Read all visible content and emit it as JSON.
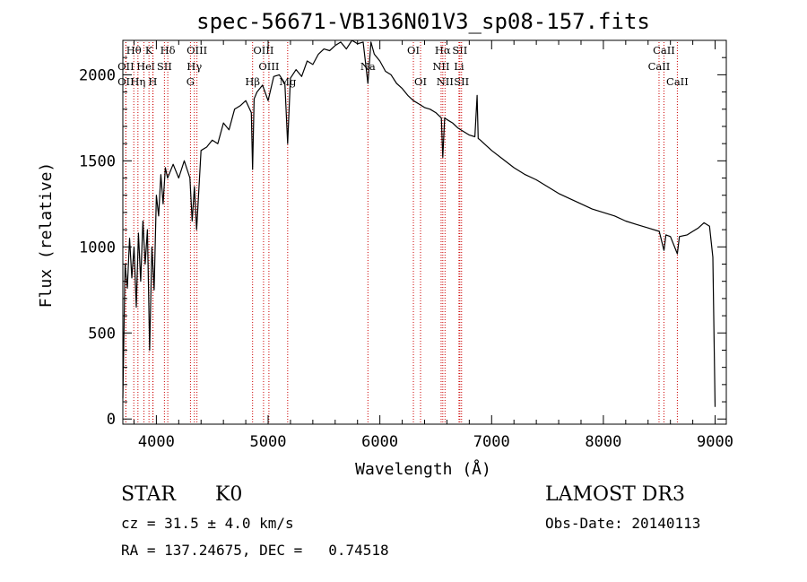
{
  "chart_data": {
    "type": "line",
    "title": "spec-56671-VB136N01V3_sp08-157.fits",
    "xlabel": "Wavelength (Å)",
    "ylabel": "Flux (relative)",
    "xlim": [
      3700,
      9100
    ],
    "ylim": [
      -30,
      2200
    ],
    "x_ticks": [
      4000,
      5000,
      6000,
      7000,
      8000,
      9000
    ],
    "y_ticks": [
      0,
      500,
      1000,
      1500,
      2000
    ],
    "x_tick_labels": [
      "4000",
      "5000",
      "6000",
      "7000",
      "8000",
      "9000"
    ],
    "y_tick_labels": [
      "0",
      "500",
      "1000",
      "1500",
      "2000"
    ],
    "series": [
      {
        "name": "spectrum",
        "x": [
          3700,
          3720,
          3740,
          3760,
          3780,
          3800,
          3820,
          3840,
          3860,
          3880,
          3900,
          3920,
          3940,
          3960,
          3980,
          4000,
          4020,
          4040,
          4060,
          4080,
          4100,
          4150,
          4200,
          4250,
          4300,
          4320,
          4340,
          4360,
          4400,
          4450,
          4500,
          4550,
          4600,
          4650,
          4700,
          4750,
          4800,
          4850,
          4861,
          4875,
          4900,
          4950,
          5000,
          5050,
          5100,
          5150,
          5175,
          5200,
          5250,
          5300,
          5350,
          5400,
          5450,
          5500,
          5550,
          5600,
          5650,
          5700,
          5750,
          5800,
          5850,
          5893,
          5920,
          5950,
          6000,
          6050,
          6100,
          6150,
          6200,
          6250,
          6300,
          6350,
          6400,
          6450,
          6500,
          6550,
          6563,
          6580,
          6600,
          6650,
          6700,
          6750,
          6800,
          6850,
          6870,
          6880,
          6900,
          6950,
          7000,
          7100,
          7200,
          7300,
          7400,
          7500,
          7600,
          7700,
          7800,
          7900,
          8000,
          8100,
          8200,
          8300,
          8400,
          8500,
          8542,
          8560,
          8600,
          8662,
          8680,
          8750,
          8800,
          8850,
          8900,
          8950,
          8980,
          9000
        ],
        "y": [
          120,
          900,
          760,
          1050,
          820,
          1000,
          650,
          1080,
          800,
          1150,
          900,
          1100,
          400,
          1000,
          750,
          1300,
          1180,
          1420,
          1250,
          1460,
          1400,
          1480,
          1400,
          1500,
          1400,
          1150,
          1350,
          1100,
          1560,
          1580,
          1620,
          1600,
          1720,
          1680,
          1800,
          1820,
          1850,
          1780,
          1450,
          1860,
          1900,
          1940,
          1850,
          1990,
          2000,
          1950,
          1600,
          1980,
          2030,
          1990,
          2080,
          2060,
          2120,
          2150,
          2140,
          2170,
          2190,
          2150,
          2200,
          2180,
          2190,
          1950,
          2190,
          2120,
          2080,
          2020,
          2000,
          1950,
          1920,
          1880,
          1850,
          1830,
          1810,
          1800,
          1780,
          1750,
          1520,
          1750,
          1740,
          1720,
          1690,
          1670,
          1650,
          1640,
          1880,
          1630,
          1620,
          1590,
          1560,
          1510,
          1460,
          1420,
          1390,
          1350,
          1310,
          1280,
          1250,
          1220,
          1200,
          1180,
          1150,
          1130,
          1110,
          1090,
          980,
          1070,
          1060,
          960,
          1060,
          1070,
          1090,
          1110,
          1140,
          1120,
          940,
          70
        ]
      }
    ],
    "line_ids": [
      {
        "label": "Hθ",
        "wavelength": 3798,
        "row": 0
      },
      {
        "label": "K",
        "wavelength": 3934,
        "row": 0
      },
      {
        "label": "Hδ",
        "wavelength": 4102,
        "row": 0
      },
      {
        "label": "OIII",
        "wavelength": 4363,
        "row": 0
      },
      {
        "label": "OIII",
        "wavelength": 4959,
        "row": 0
      },
      {
        "label": "OI",
        "wavelength": 6300,
        "row": 0
      },
      {
        "label": "Hα",
        "wavelength": 6563,
        "row": 0
      },
      {
        "label": "SII",
        "wavelength": 6716,
        "row": 0
      },
      {
        "label": "CaII",
        "wavelength": 8542,
        "row": 0
      },
      {
        "label": "OII",
        "wavelength": 3727,
        "row": 1
      },
      {
        "label": "He",
        "wavelength": 3889,
        "row": 1
      },
      {
        "label": "I",
        "wavelength": 3970,
        "row": 1
      },
      {
        "label": "SII",
        "wavelength": 4072,
        "row": 1
      },
      {
        "label": "Hγ",
        "wavelength": 4340,
        "row": 1
      },
      {
        "label": "OIII",
        "wavelength": 5007,
        "row": 1
      },
      {
        "label": "Na",
        "wavelength": 5893,
        "row": 1
      },
      {
        "label": "NII",
        "wavelength": 6548,
        "row": 1
      },
      {
        "label": "Li",
        "wavelength": 6708,
        "row": 1
      },
      {
        "label": "CaII",
        "wavelength": 8498,
        "row": 1
      },
      {
        "label": "OII",
        "wavelength": 3727,
        "row": 2
      },
      {
        "label": "Hη",
        "wavelength": 3835,
        "row": 2
      },
      {
        "label": "H",
        "wavelength": 3968,
        "row": 2
      },
      {
        "label": "G",
        "wavelength": 4305,
        "row": 2
      },
      {
        "label": "Hβ",
        "wavelength": 4861,
        "row": 2
      },
      {
        "label": "Mg",
        "wavelength": 5175,
        "row": 2
      },
      {
        "label": "OI",
        "wavelength": 6364,
        "row": 2
      },
      {
        "label": "NII",
        "wavelength": 6583,
        "row": 2
      },
      {
        "label": "SII",
        "wavelength": 6731,
        "row": 2
      },
      {
        "label": "CaII",
        "wavelength": 8662,
        "row": 2
      }
    ],
    "line_id_color": "#cc0000"
  },
  "info": {
    "class_label": "STAR",
    "subclass": "K0",
    "survey": "LAMOST DR3",
    "redshift": "cz = 31.5 ± 4.0 km/s",
    "obs_date": "Obs-Date: 20140113",
    "coords": "RA = 137.24675, DEC =   0.74518"
  }
}
